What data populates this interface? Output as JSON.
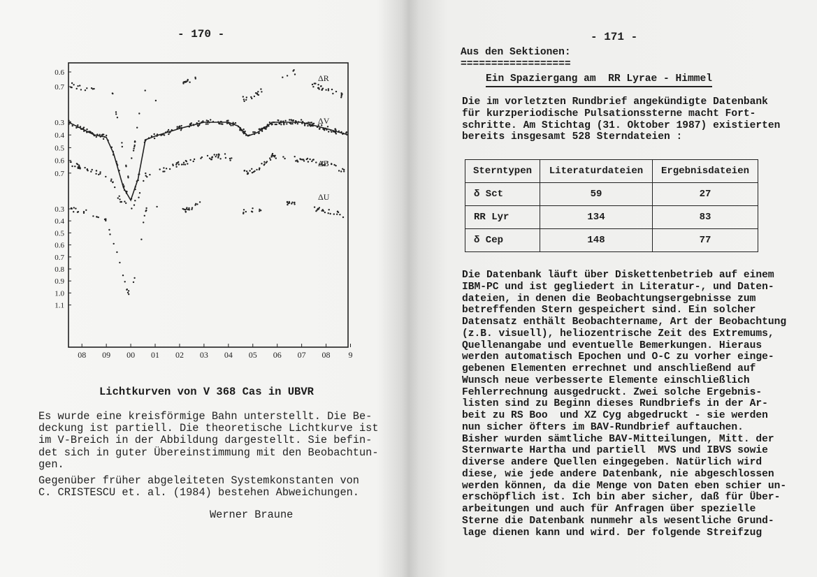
{
  "left_page": {
    "page_number": "- 170 -",
    "figure": {
      "caption": "Lichtkurven von V 368 Cas in UBVR"
    },
    "paragraphs": [
      [
        "Es wurde eine kreisförmige Bahn unterstellt. Die Be-",
        "deckung ist partiell. Die theoretische Lichtkurve ist",
        "im V-Breich in der Abbildung dargestellt. Sie befin-",
        "det sich in guter Übereinstimmung mit den Beobachtun-",
        "gen."
      ],
      [
        "Gegenüber früher abgeleiteten Systemkonstanten von",
        "C. CRISTESCU et. al. (1984) bestehen Abweichungen."
      ]
    ],
    "signature": "Werner Braune"
  },
  "right_page": {
    "page_number": "- 171 -",
    "section_heading": "Aus den Sektionen:",
    "section_rule": "==================",
    "article_title": "Ein Spaziergang am  RR Lyrae - Himmel",
    "intro": [
      "Die im vorletzten Rundbrief angekündigte Datenbank",
      "für kurzperiodische Pulsationssterne macht Fort-",
      "schritte. Am Stichtag (31. Oktober 1987) existierten",
      "bereits insgesamt 528 Sterndateien :"
    ],
    "table": {
      "headers": [
        "Sterntypen",
        "Literaturdateien",
        "Ergebnisdateien"
      ],
      "rows": [
        [
          "δ Sct",
          "59",
          "27"
        ],
        [
          "RR Lyr",
          "134",
          "83"
        ],
        [
          "δ Cep",
          "148",
          "77"
        ]
      ]
    },
    "body": [
      "Die Datenbank läuft über Diskettenbetrieb auf einem",
      "IBM-PC und ist gegliedert in Literatur-, und Daten-",
      "dateien, in denen die Beobachtungsergebnisse zum",
      "betreffenden Stern gespeichert sind. Ein solcher",
      "Datensatz enthält Beobachtername, Art der Beobachtung",
      "(z.B. visuell), heliozentrische Zeit des Extremums,",
      "Quellenangabe und eventuelle Bemerkungen. Hieraus",
      "werden automatisch Epochen und O-C zu vorher einge-",
      "gebenen Elementen errechnet und anschließend auf",
      "Wunsch neue verbesserte Elemente einschließlich",
      "Fehlerrechnung ausgedruckt. Zwei solche Ergebnis-",
      "listen sind zu Beginn dieses Rundbriefs in der Ar-",
      "beit zu RS Boo  und XZ Cyg abgedruckt - sie werden",
      "nun sicher öfters im BAV-Rundbrief auftauchen.",
      "Bisher wurden sämtliche BAV-Mitteilungen, Mitt. der",
      "Sternwarte Hartha und partiell  MVS und IBVS sowie",
      "diverse andere Quellen eingegeben. Natürlich wird",
      "diese, wie jede andere Datenbank, nie abgeschlossen",
      "werden können, da die Menge von Daten eben schier un-",
      "erschöpflich ist. Ich bin aber sicher, daß für Über-",
      "arbeitungen und auch für Anfragen über spezielle",
      "Sterne die Datenbank nunmehr als wesentliche Grund-",
      "lage dienen kann und wird. Der folgende Streifzug"
    ]
  },
  "chart_data": {
    "type": "scatter",
    "title": "Lichtkurven von V 368 Cas in UBVR",
    "xlabel": "",
    "ylabel": "",
    "x_ticks": [
      {
        "x": -0.2,
        "label": "08"
      },
      {
        "x": -0.1,
        "label": "09"
      },
      {
        "x": 0.0,
        "label": "00"
      },
      {
        "x": 0.1,
        "label": "01"
      },
      {
        "x": 0.2,
        "label": "02"
      },
      {
        "x": 0.3,
        "label": "03"
      },
      {
        "x": 0.4,
        "label": "04"
      },
      {
        "x": 0.5,
        "label": "05"
      },
      {
        "x": 0.6,
        "label": "06"
      },
      {
        "x": 0.7,
        "label": "07"
      },
      {
        "x": 0.8,
        "label": "08"
      },
      {
        "x": 0.9,
        "label": "9"
      }
    ],
    "xlim": [
      -0.255,
      0.89
    ],
    "y_inverted": true,
    "grid": false,
    "series": [
      {
        "name": "ΔR",
        "y_ticks": [
          "0.6",
          "0.7"
        ],
        "points": [
          [
            -0.245,
            0.7
          ],
          [
            -0.14,
            0.75
          ],
          [
            -0.08,
            0.72
          ],
          [
            -0.04,
            1.1
          ],
          [
            -0.01,
            1.39
          ],
          [
            0.02,
            1.1
          ],
          [
            0.05,
            0.72
          ],
          [
            0.1,
            0.8
          ],
          [
            0.22,
            0.69
          ],
          [
            0.28,
            0.62
          ],
          [
            0.47,
            0.81
          ],
          [
            0.53,
            0.75
          ],
          [
            0.63,
            0.62
          ],
          [
            0.67,
            0.6
          ],
          [
            0.75,
            0.7
          ],
          [
            0.87,
            0.78
          ]
        ],
        "gaps": [
          [
            -0.13,
            -0.09
          ],
          [
            0.06,
            0.09
          ],
          [
            0.11,
            0.21
          ],
          [
            0.29,
            0.46
          ],
          [
            0.54,
            0.62
          ],
          [
            0.68,
            0.74
          ]
        ]
      },
      {
        "name": "ΔV",
        "y_ticks": [
          "0.3",
          "0.4",
          "0.5",
          "0.6",
          "0.7"
        ],
        "theoretical_curve": true,
        "points": [
          [
            -0.255,
            0.3
          ],
          [
            -0.15,
            0.4
          ],
          [
            -0.1,
            0.42
          ],
          [
            -0.07,
            0.55
          ],
          [
            -0.03,
            0.82
          ],
          [
            0.0,
            0.92
          ],
          [
            0.03,
            0.75
          ],
          [
            0.06,
            0.44
          ],
          [
            0.1,
            0.41
          ],
          [
            0.2,
            0.35
          ],
          [
            0.3,
            0.3
          ],
          [
            0.4,
            0.3
          ],
          [
            0.44,
            0.33
          ],
          [
            0.48,
            0.41
          ],
          [
            0.52,
            0.38
          ],
          [
            0.58,
            0.3
          ],
          [
            0.7,
            0.3
          ],
          [
            0.8,
            0.35
          ],
          [
            0.89,
            0.4
          ]
        ]
      },
      {
        "name": "ΔB",
        "y_ticks": [],
        "points": [
          [
            -0.255,
            0.62
          ],
          [
            -0.15,
            0.7
          ],
          [
            -0.1,
            0.72
          ],
          [
            -0.08,
            0.75
          ],
          [
            -0.05,
            0.9
          ],
          [
            0.0,
            1.0
          ],
          [
            0.03,
            0.9
          ],
          [
            0.06,
            0.72
          ],
          [
            0.1,
            0.7
          ],
          [
            0.2,
            0.63
          ],
          [
            0.3,
            0.58
          ],
          [
            0.4,
            0.57
          ],
          [
            0.47,
            0.71
          ],
          [
            0.52,
            0.67
          ],
          [
            0.58,
            0.57
          ],
          [
            0.7,
            0.6
          ],
          [
            0.8,
            0.63
          ],
          [
            0.89,
            0.7
          ]
        ],
        "gaps": [
          [
            0.42,
            0.46
          ]
        ]
      },
      {
        "name": "ΔU",
        "y_ticks": [
          "0.3",
          "0.4",
          "0.5",
          "0.6",
          "0.7",
          "0.8",
          "0.9",
          "1.0",
          "1.1"
        ],
        "points": [
          [
            -0.245,
            0.3
          ],
          [
            -0.14,
            0.35
          ],
          [
            -0.1,
            0.4
          ],
          [
            -0.06,
            0.65
          ],
          [
            -0.02,
            0.95
          ],
          [
            0.0,
            1.05
          ],
          [
            0.02,
            0.85
          ],
          [
            0.04,
            0.6
          ],
          [
            0.06,
            0.3
          ],
          [
            0.1,
            0.3
          ],
          [
            0.22,
            0.32
          ],
          [
            0.28,
            0.25
          ],
          [
            0.47,
            0.33
          ],
          [
            0.53,
            0.3
          ],
          [
            0.65,
            0.25
          ],
          [
            0.68,
            0.27
          ],
          [
            0.76,
            0.3
          ],
          [
            0.87,
            0.35
          ]
        ],
        "gaps": [
          [
            -0.13,
            -0.11
          ],
          [
            0.065,
            0.09
          ],
          [
            0.11,
            0.21
          ],
          [
            0.29,
            0.46
          ],
          [
            0.54,
            0.64
          ],
          [
            0.69,
            0.75
          ]
        ]
      }
    ]
  }
}
